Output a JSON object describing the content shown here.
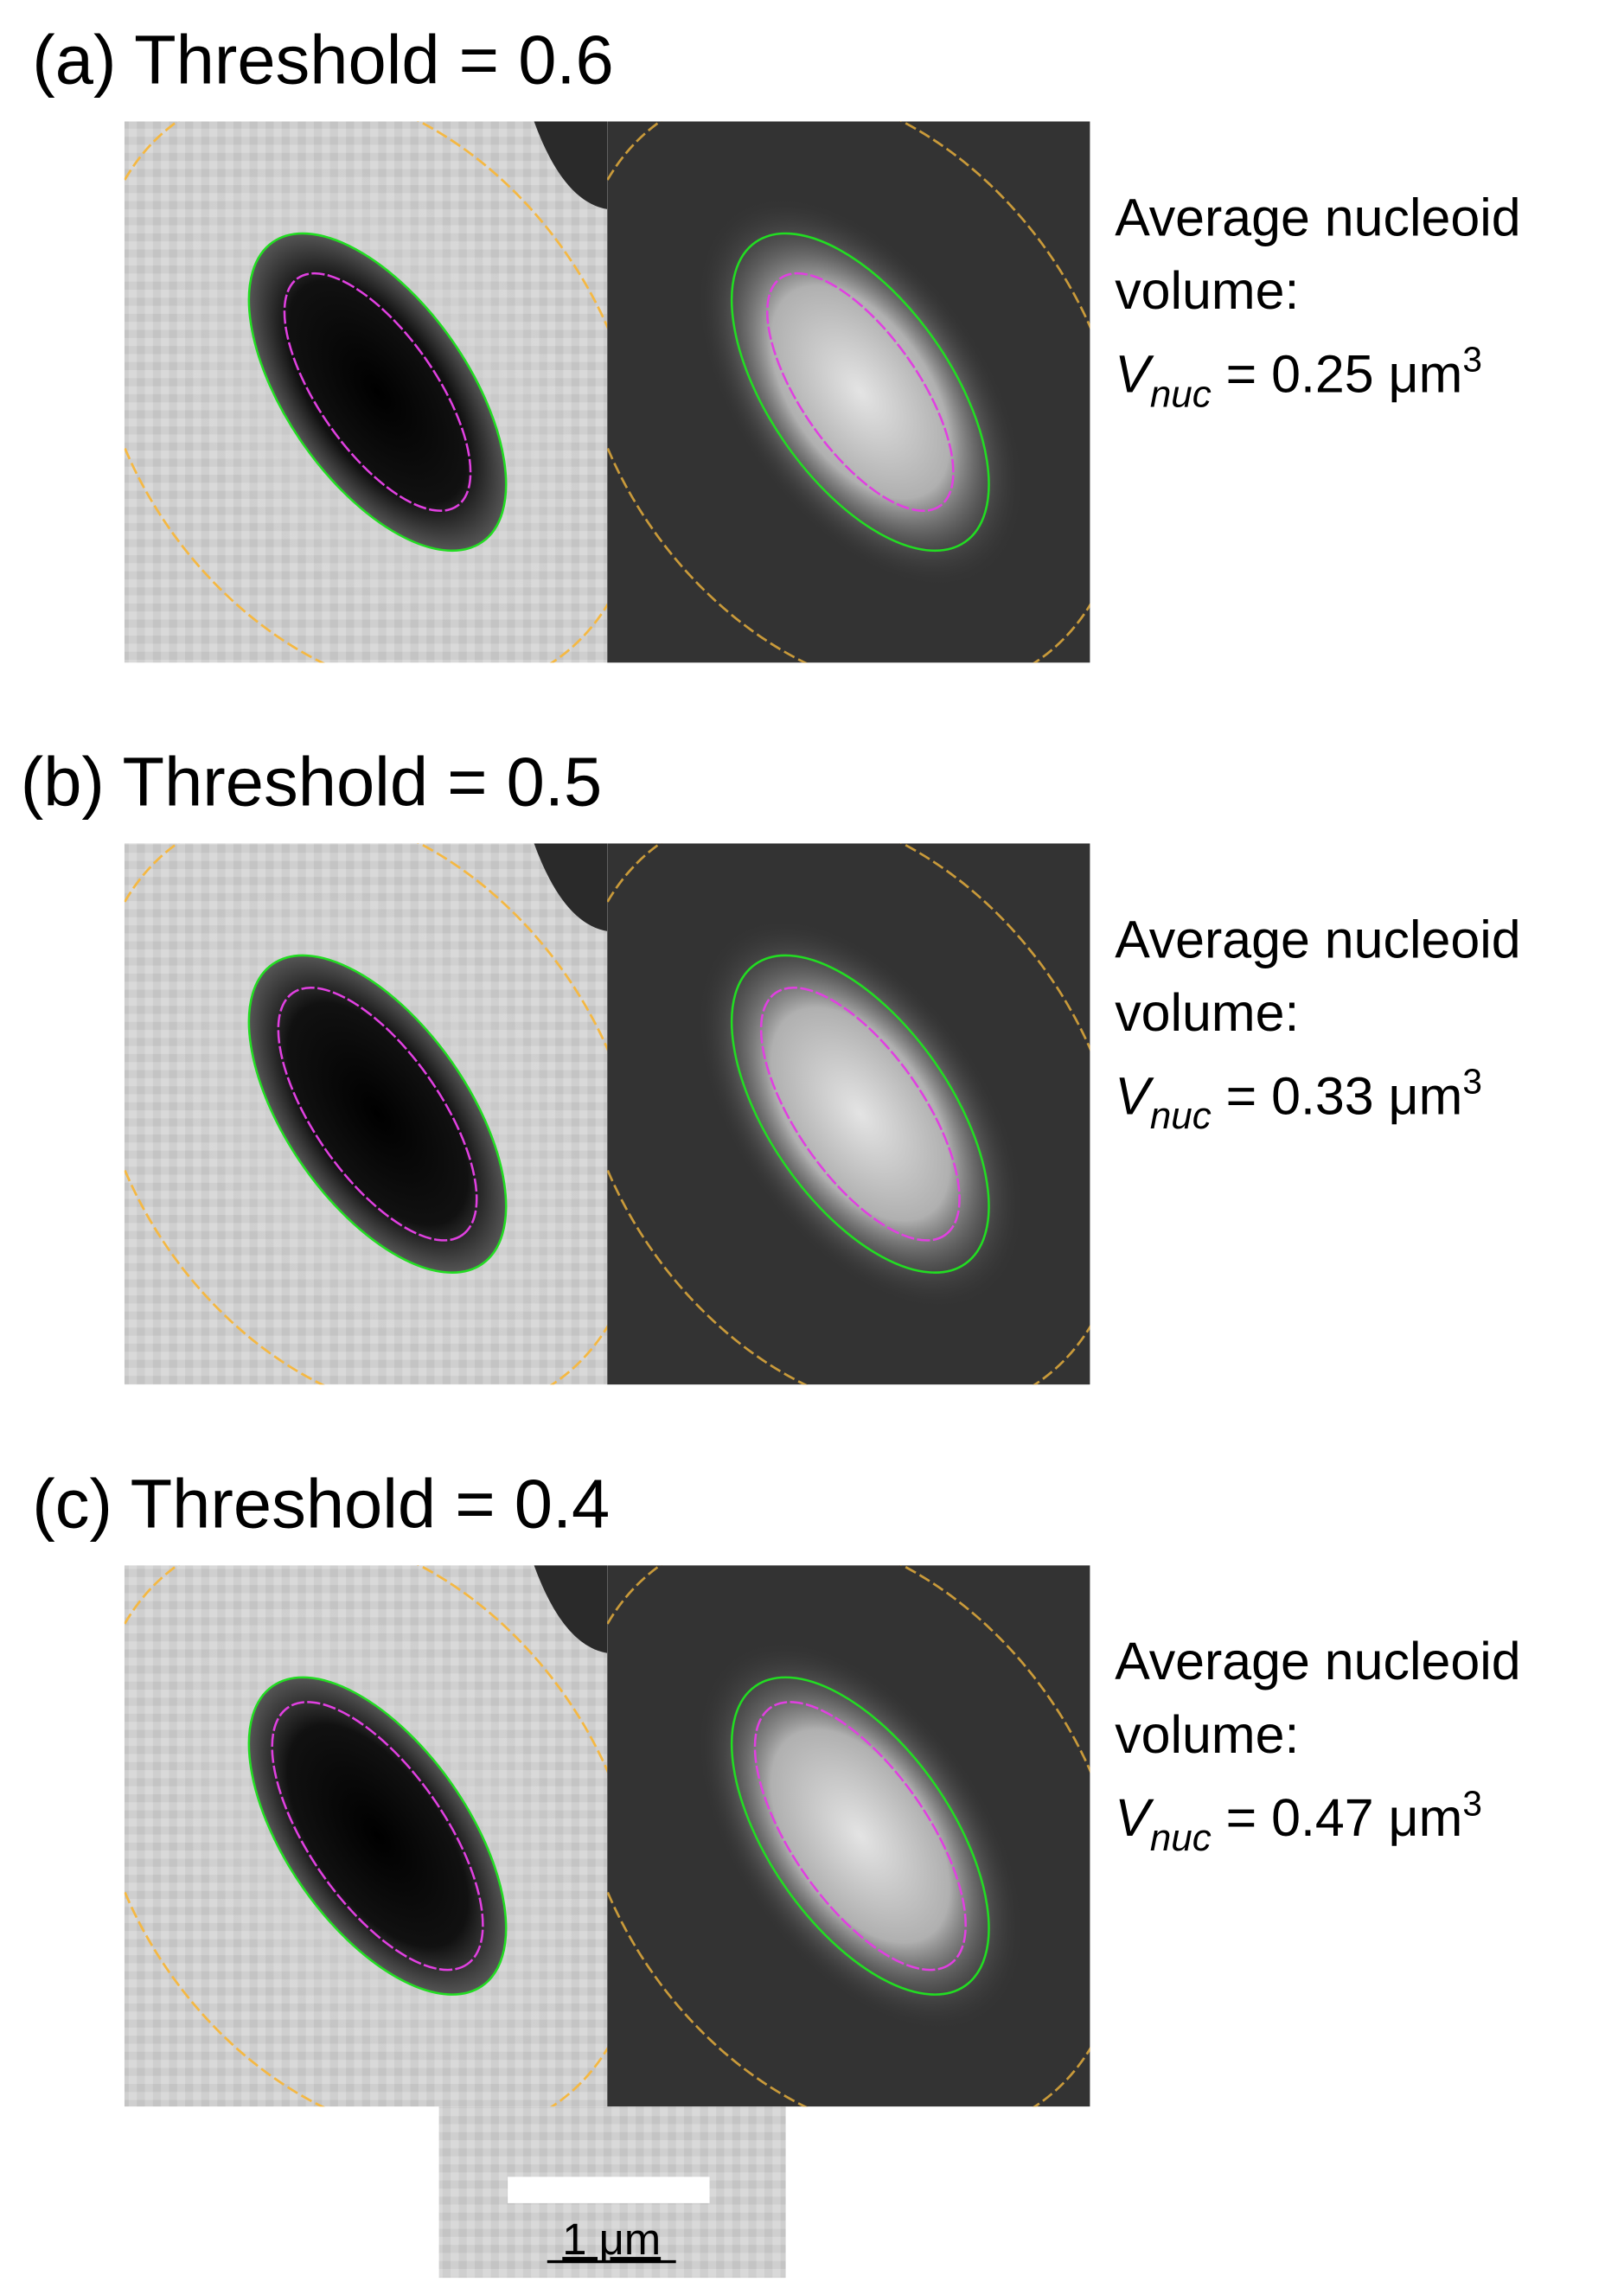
{
  "panels": [
    {
      "title": "(a) Threshold = 0.6",
      "caption": [
        "Average nucleoid",
        "volume:"
      ],
      "formula": {
        "symbol": "V",
        "subscript": "nuc",
        "rest": " = 0.25 μm",
        "superscript": "3"
      }
    },
    {
      "title": "(b) Threshold = 0.5",
      "caption": [
        "Average nucleoid",
        "volume:"
      ],
      "formula": {
        "symbol": "V",
        "subscript": "nuc",
        "rest": " = 0.33 μm",
        "superscript": "3"
      }
    },
    {
      "title": "(c) Threshold = 0.4",
      "caption": [
        "Average nucleoid",
        "volume:"
      ],
      "formula": {
        "symbol": "V",
        "subscript": "nuc",
        "rest": " = 0.47 μm",
        "superscript": "3"
      }
    }
  ],
  "scale_bar": {
    "label": "1 μm"
  }
}
